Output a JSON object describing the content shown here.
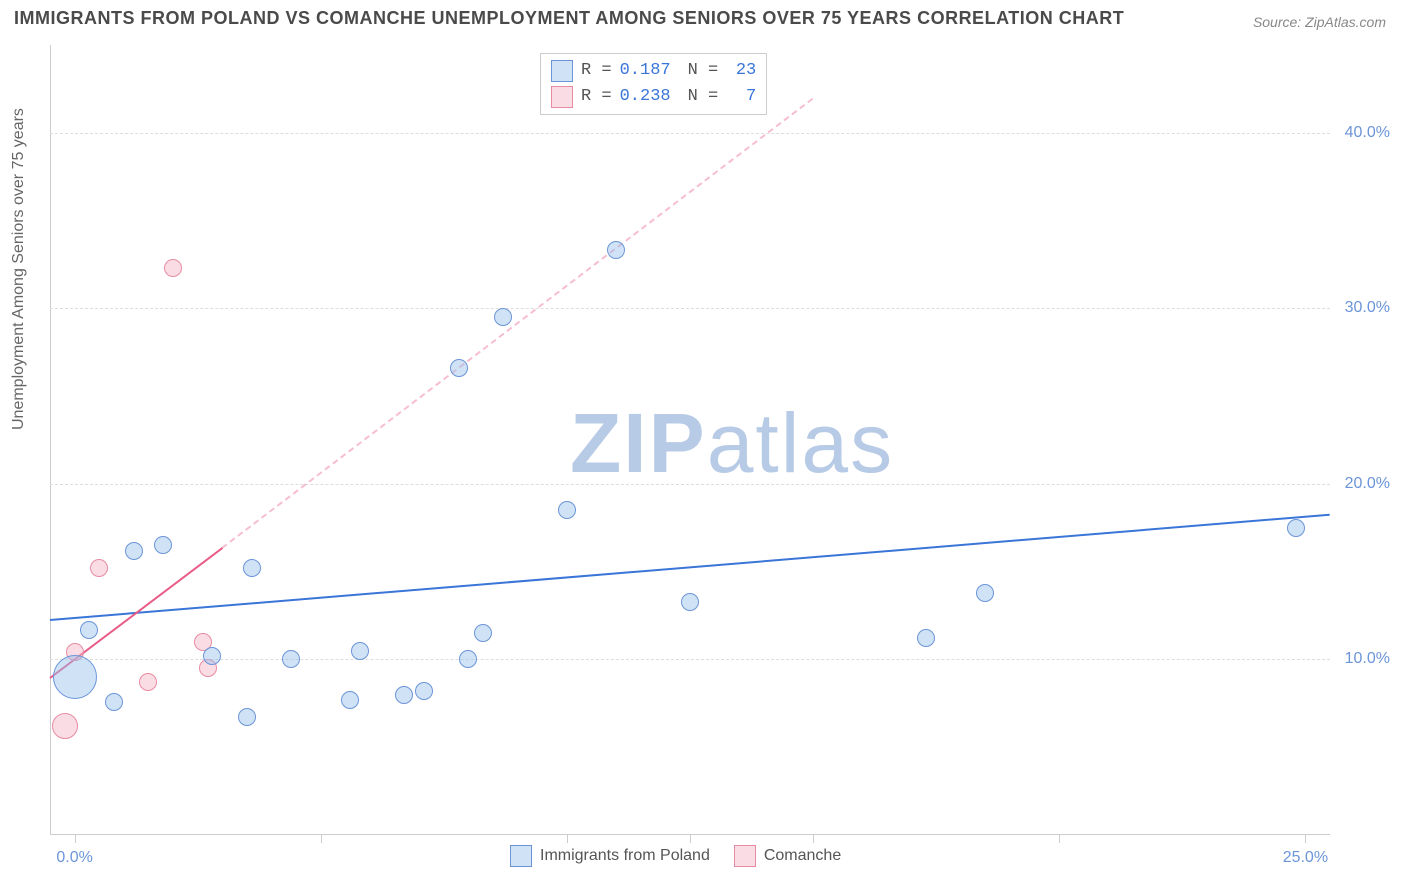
{
  "title": "IMMIGRANTS FROM POLAND VS COMANCHE UNEMPLOYMENT AMONG SENIORS OVER 75 YEARS CORRELATION CHART",
  "source": "Source: ZipAtlas.com",
  "ylabel": "Unemployment Among Seniors over 75 years",
  "watermark_a": "ZIP",
  "watermark_b": "atlas",
  "chart": {
    "type": "scatter",
    "xlim": [
      -0.5,
      25.5
    ],
    "ylim": [
      0,
      45
    ],
    "xticks": [
      0.0,
      5.0,
      10.0,
      12.5,
      15.0,
      20.0,
      25.0
    ],
    "xtick_labels": {
      "0.0": "0.0%",
      "25.0": "25.0%"
    },
    "yticks": [
      10.0,
      20.0,
      30.0,
      40.0
    ],
    "ytick_labels": {
      "10.0": "10.0%",
      "20.0": "20.0%",
      "30.0": "30.0%",
      "40.0": "40.0%"
    },
    "grid_color": "#dddddd",
    "background_color": "#ffffff",
    "series": {
      "poland": {
        "label": "Immigrants from Poland",
        "color_fill": "rgba(150,190,235,0.45)",
        "color_stroke": "#6b95d8",
        "R": "0.187",
        "N": "23",
        "trend": {
          "x1": -0.5,
          "y1": 12.3,
          "x2": 25.5,
          "y2": 18.3,
          "color": "#3a75d8"
        },
        "points": [
          {
            "x": 0.0,
            "y": 9.0,
            "r": 22
          },
          {
            "x": 0.3,
            "y": 11.7,
            "r": 9
          },
          {
            "x": 0.8,
            "y": 7.6,
            "r": 9
          },
          {
            "x": 1.2,
            "y": 16.2,
            "r": 9
          },
          {
            "x": 1.8,
            "y": 16.5,
            "r": 9
          },
          {
            "x": 2.8,
            "y": 10.2,
            "r": 9
          },
          {
            "x": 3.5,
            "y": 6.7,
            "r": 9
          },
          {
            "x": 3.6,
            "y": 15.2,
            "r": 9
          },
          {
            "x": 4.4,
            "y": 10.0,
            "r": 9
          },
          {
            "x": 5.6,
            "y": 7.7,
            "r": 9
          },
          {
            "x": 5.8,
            "y": 10.5,
            "r": 9
          },
          {
            "x": 6.7,
            "y": 8.0,
            "r": 9
          },
          {
            "x": 7.1,
            "y": 8.2,
            "r": 9
          },
          {
            "x": 7.8,
            "y": 26.6,
            "r": 9
          },
          {
            "x": 8.0,
            "y": 10.0,
            "r": 9
          },
          {
            "x": 8.3,
            "y": 11.5,
            "r": 9
          },
          {
            "x": 8.7,
            "y": 29.5,
            "r": 9
          },
          {
            "x": 10.0,
            "y": 18.5,
            "r": 9
          },
          {
            "x": 11.0,
            "y": 33.3,
            "r": 9
          },
          {
            "x": 12.5,
            "y": 13.3,
            "r": 9
          },
          {
            "x": 17.3,
            "y": 11.2,
            "r": 9
          },
          {
            "x": 18.5,
            "y": 13.8,
            "r": 9
          },
          {
            "x": 24.8,
            "y": 17.5,
            "r": 9
          }
        ]
      },
      "comanche": {
        "label": "Comanche",
        "color_fill": "rgba(245,180,195,0.45)",
        "color_stroke": "#e88ba3",
        "R": "0.238",
        "N": "7",
        "trend_solid": {
          "x1": -0.5,
          "y1": 9.0,
          "x2": 3.0,
          "y2": 16.4,
          "color": "#e85d87"
        },
        "trend_dash": {
          "x1": 3.0,
          "y1": 16.4,
          "x2": 15.0,
          "y2": 42.0,
          "color": "rgba(232,93,135,0.4)"
        },
        "points": [
          {
            "x": -0.2,
            "y": 6.2,
            "r": 13
          },
          {
            "x": 0.0,
            "y": 10.4,
            "r": 9
          },
          {
            "x": 0.5,
            "y": 15.2,
            "r": 9
          },
          {
            "x": 1.5,
            "y": 8.7,
            "r": 9
          },
          {
            "x": 2.0,
            "y": 32.3,
            "r": 9
          },
          {
            "x": 2.6,
            "y": 11.0,
            "r": 9
          },
          {
            "x": 2.7,
            "y": 9.5,
            "r": 9
          }
        ]
      }
    }
  },
  "stats_box": {
    "rows": [
      {
        "swatch": "blue",
        "R_label": "R =",
        "R": "0.187",
        "N_label": "N =",
        "N": "23"
      },
      {
        "swatch": "pink",
        "R_label": "R =",
        "R": "0.238",
        "N_label": "N =",
        "N": " 7"
      }
    ]
  },
  "legend_bottom": [
    {
      "swatch": "blue",
      "label": "Immigrants from Poland"
    },
    {
      "swatch": "pink",
      "label": "Comanche"
    }
  ]
}
